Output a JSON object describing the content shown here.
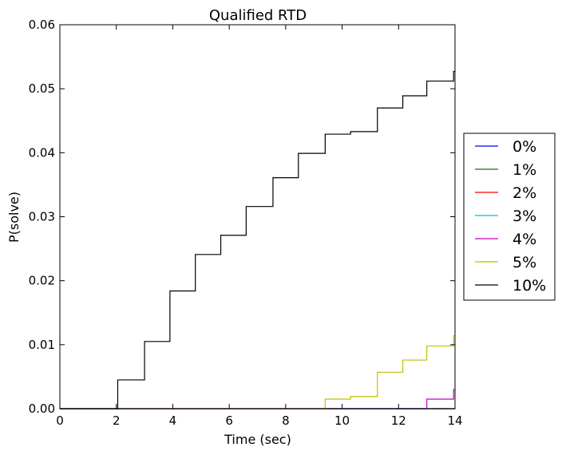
{
  "chart_data": {
    "type": "line",
    "step": true,
    "title": "Qualified RTD",
    "xlabel": "Time (sec)",
    "ylabel": "P(solve)",
    "xlim": [
      0,
      14
    ],
    "ylim": [
      0,
      0.06
    ],
    "xticks": [
      "0",
      "2",
      "4",
      "6",
      "8",
      "10",
      "12",
      "14"
    ],
    "yticks": [
      "0.00",
      "0.01",
      "0.02",
      "0.03",
      "0.04",
      "0.05",
      "0.06"
    ],
    "xtick_values": [
      0,
      2,
      4,
      6,
      8,
      10,
      12,
      14
    ],
    "ytick_values": [
      0,
      0.01,
      0.02,
      0.03,
      0.04,
      0.05,
      0.06
    ],
    "grid": false,
    "legend_position": "outside-right",
    "series": [
      {
        "name": "0%",
        "color": "#0000ff",
        "x": [
          0,
          14
        ],
        "y": [
          0,
          0
        ]
      },
      {
        "name": "1%",
        "color": "#008000",
        "x": [
          0,
          14
        ],
        "y": [
          0,
          0
        ]
      },
      {
        "name": "2%",
        "color": "#ff0000",
        "x": [
          0,
          14
        ],
        "y": [
          0,
          0
        ]
      },
      {
        "name": "3%",
        "color": "#00bfbf",
        "x": [
          0,
          14
        ],
        "y": [
          0,
          0
        ]
      },
      {
        "name": "4%",
        "color": "#bf00bf",
        "x": [
          0,
          13.0,
          13.95,
          14
        ],
        "y": [
          0,
          0.0015,
          0.003,
          0.003
        ]
      },
      {
        "name": "5%",
        "color": "#bfbf00",
        "x": [
          0,
          9.4,
          10.3,
          11.25,
          12.15,
          13.0,
          13.95,
          14
        ],
        "y": [
          0,
          0.0015,
          0.0019,
          0.0057,
          0.0076,
          0.0098,
          0.0114,
          0.0114
        ]
      },
      {
        "name": "10%",
        "color": "#000000",
        "x": [
          0,
          2.05,
          3.0,
          3.9,
          4.8,
          5.7,
          6.6,
          7.55,
          8.45,
          9.4,
          10.3,
          11.25,
          12.15,
          13.0,
          13.95,
          14
        ],
        "y": [
          0,
          0.0045,
          0.0105,
          0.0184,
          0.0241,
          0.0271,
          0.0316,
          0.0361,
          0.0399,
          0.0429,
          0.0433,
          0.047,
          0.0489,
          0.0512,
          0.0527,
          0.0527
        ]
      }
    ]
  }
}
